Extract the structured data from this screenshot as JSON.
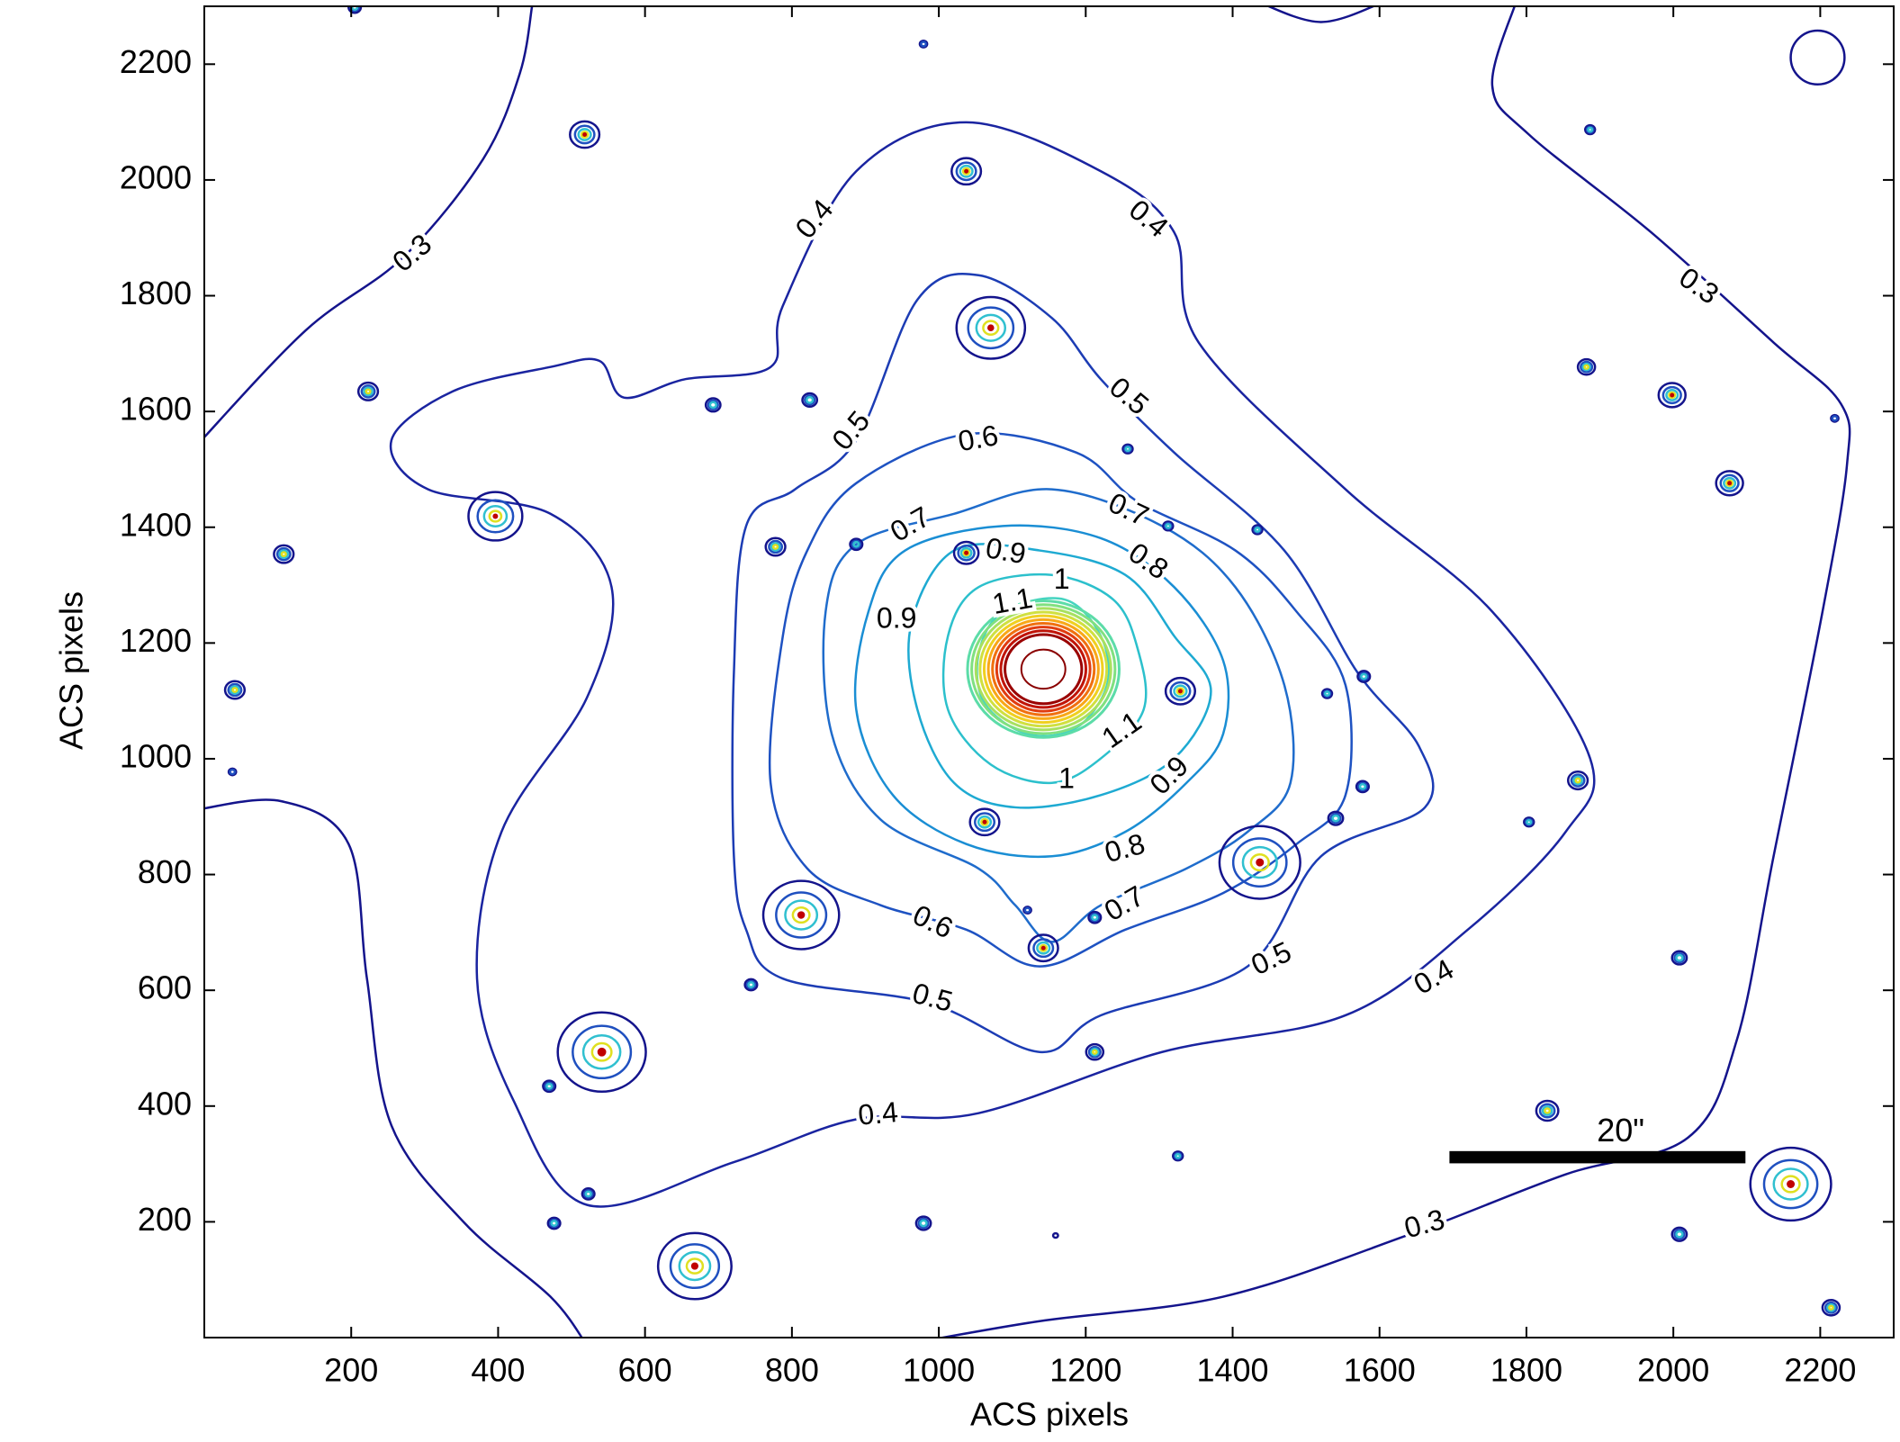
{
  "chart_data": {
    "type": "contour",
    "xlabel": "ACS pixels",
    "ylabel": "ACS pixels",
    "xlim": [
      0,
      2300
    ],
    "ylim": [
      0,
      2300
    ],
    "xticks": [
      200,
      400,
      600,
      800,
      1000,
      1200,
      1400,
      1600,
      1800,
      2000,
      2200
    ],
    "yticks": [
      200,
      400,
      600,
      800,
      1000,
      1200,
      1400,
      1600,
      1800,
      2000,
      2200
    ],
    "levels": [
      0.3,
      0.4,
      0.5,
      0.6,
      0.7,
      0.8,
      0.9,
      1,
      1.1
    ],
    "colors": [
      "#14148c",
      "#1a24a0",
      "#1c3cb4",
      "#1e52c2",
      "#1f6ccc",
      "#1a8ed4",
      "#1eaad2",
      "#2cc0cc",
      "#44d4c0"
    ],
    "scale_bar_label": "20\""
  }
}
